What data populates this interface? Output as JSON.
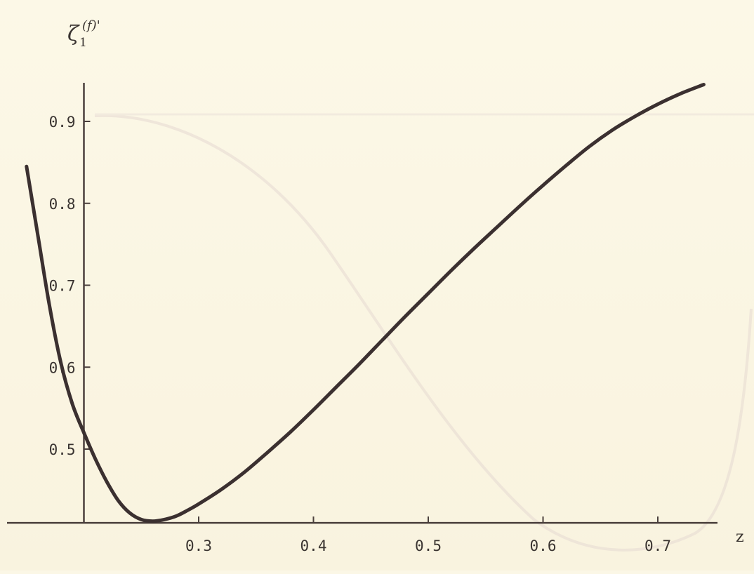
{
  "chart_data": {
    "type": "line",
    "title": "",
    "xlabel": "z",
    "ylabel": {
      "main": "ζ",
      "sub": "1",
      "sup": "(f)'"
    },
    "xlim": [
      0.2,
      0.75
    ],
    "ylim": [
      0.41,
      0.95
    ],
    "x_ticks": [
      {
        "value": 0.3,
        "label": "0.3"
      },
      {
        "value": 0.4,
        "label": "0.4"
      },
      {
        "value": 0.5,
        "label": "0.5"
      },
      {
        "value": 0.6,
        "label": "0.6"
      },
      {
        "value": 0.7,
        "label": "0.7"
      }
    ],
    "y_ticks": [
      {
        "value": 0.5,
        "label": "0.5"
      },
      {
        "value": 0.6,
        "label": "0.6"
      },
      {
        "value": 0.7,
        "label": "0.7"
      },
      {
        "value": 0.8,
        "label": "0.8"
      },
      {
        "value": 0.9,
        "label": "0.9"
      }
    ],
    "grid": false,
    "legend": "none",
    "series": [
      {
        "color": "#3b3030",
        "x": [
          0.15,
          0.16,
          0.17,
          0.18,
          0.19,
          0.2,
          0.21,
          0.22,
          0.23,
          0.24,
          0.25,
          0.26,
          0.27,
          0.28,
          0.29,
          0.3,
          0.32,
          0.34,
          0.36,
          0.38,
          0.4,
          0.42,
          0.44,
          0.46,
          0.48,
          0.5,
          0.52,
          0.54,
          0.56,
          0.58,
          0.6,
          0.62,
          0.64,
          0.66,
          0.68,
          0.7,
          0.72,
          0.74
        ],
        "y": [
          0.845,
          0.76,
          0.675,
          0.605,
          0.555,
          0.52,
          0.488,
          0.46,
          0.437,
          0.422,
          0.414,
          0.412,
          0.414,
          0.418,
          0.425,
          0.433,
          0.451,
          0.472,
          0.496,
          0.521,
          0.548,
          0.576,
          0.604,
          0.633,
          0.662,
          0.69,
          0.718,
          0.745,
          0.771,
          0.797,
          0.822,
          0.846,
          0.869,
          0.889,
          0.906,
          0.921,
          0.934,
          0.945
        ]
      }
    ]
  },
  "colors": {
    "background": "#fbf7e6",
    "axis": "#4a3f3c",
    "curve": "#3b3030",
    "show_through": "#e8dcd6"
  }
}
